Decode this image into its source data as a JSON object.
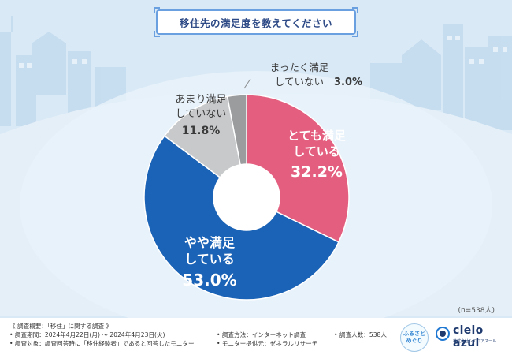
{
  "title": "移住先の満足度を教えてください",
  "sample_size": "(n=538人)",
  "chart_data": {
    "type": "pie",
    "variant": "donut",
    "title": "移住先の満足度を教えてください",
    "unit": "%",
    "slices": [
      {
        "label_lines": [
          "とても満足",
          "している"
        ],
        "value": 32.2,
        "display": "32.2%",
        "color": "#e45f7f",
        "text_color": "#ffffff"
      },
      {
        "label_lines": [
          "やや満足",
          "している"
        ],
        "value": 53.0,
        "display": "53.0%",
        "color": "#1b63b6",
        "text_color": "#ffffff"
      },
      {
        "label_lines": [
          "あまり満足",
          "していない"
        ],
        "value": 11.8,
        "display": "11.8%",
        "color": "#c7c9cb",
        "text_color": "#3a3a3a"
      },
      {
        "label_lines": [
          "まったく満足",
          "していない"
        ],
        "value": 3.0,
        "display": "3.0%",
        "color": "#9a9c9e",
        "text_color": "#3a3a3a"
      }
    ]
  },
  "footer": {
    "line1": "《 調査概要：「移住」に関する調査 》",
    "line2": "• 調査期間：2024年4月22日(月) ～ 2024年4月23日(火)",
    "line3": "• 調査対象：調査回答時に「移住経験者」であると回答したモニター",
    "method": "• 調査方法：インターネット調査",
    "provider": "• モニター提供元：ゼネラルリサーチ",
    "count": "• 調査人数：538人"
  },
  "logos": {
    "badge_line1": "ふるさと",
    "badge_line2": "めぐり",
    "brand_name": "cielo azul",
    "brand_sub": "株式会社シエロアスール"
  }
}
